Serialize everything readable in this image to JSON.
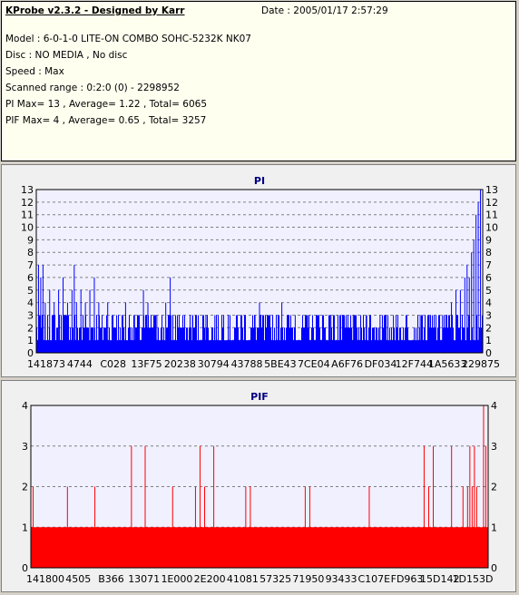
{
  "header": {
    "app_title": "KProbe v2.3.2 - Designed by Karr",
    "date": "Date : 2005/01/17 2:57:29",
    "lines": [
      "Model : 6-0-1-0 LITE-ON COMBO SOHC-5232K NK07",
      "Disc : NO MEDIA , No disc",
      "Speed : Max",
      "Scanned range : 0:2:0 (0) - 2298952",
      "PI Max= 13 , Average= 1.22 , Total= 6065",
      "PIF Max= 4 , Average= 0.65 , Total= 3257"
    ]
  },
  "colors": {
    "pi": "#0000ff",
    "pif": "#ff0000",
    "plot_bg": "#f0f0ff",
    "grid": "#808080"
  },
  "chart_data": [
    {
      "type": "bar",
      "title": "PI",
      "ylim": [
        0,
        13
      ],
      "yticks": [
        0,
        1,
        2,
        3,
        4,
        5,
        6,
        7,
        8,
        9,
        10,
        11,
        12,
        13
      ],
      "xtick_labels": [
        "141873",
        "4744",
        "C028",
        "13F75",
        "20238",
        "30794",
        "43788",
        "5BE43",
        "7CE04",
        "A6F76",
        "DF034",
        "12F744",
        "1A5633",
        "229875"
      ],
      "grid": "dashed horizontal",
      "series": [
        {
          "color": "#0000ff",
          "baseline": 1,
          "typical_range": [
            1,
            3
          ],
          "spikes": [
            [
              0.005,
              7
            ],
            [
              0.01,
              6
            ],
            [
              0.015,
              7
            ],
            [
              0.02,
              4
            ],
            [
              0.03,
              5
            ],
            [
              0.04,
              4
            ],
            [
              0.05,
              5
            ],
            [
              0.06,
              6
            ],
            [
              0.07,
              4
            ],
            [
              0.08,
              5
            ],
            [
              0.085,
              7
            ],
            [
              0.09,
              4
            ],
            [
              0.1,
              5
            ],
            [
              0.11,
              4
            ],
            [
              0.12,
              5
            ],
            [
              0.13,
              6
            ],
            [
              0.14,
              4
            ],
            [
              0.16,
              4
            ],
            [
              0.18,
              3
            ],
            [
              0.2,
              4
            ],
            [
              0.22,
              3
            ],
            [
              0.24,
              5
            ],
            [
              0.25,
              4
            ],
            [
              0.27,
              3
            ],
            [
              0.29,
              4
            ],
            [
              0.3,
              6
            ],
            [
              0.32,
              3
            ],
            [
              0.35,
              3
            ],
            [
              0.38,
              3
            ],
            [
              0.4,
              3
            ],
            [
              0.43,
              3
            ],
            [
              0.46,
              3
            ],
            [
              0.49,
              3
            ],
            [
              0.5,
              4
            ],
            [
              0.52,
              3
            ],
            [
              0.55,
              4
            ],
            [
              0.58,
              3
            ],
            [
              0.61,
              3
            ],
            [
              0.63,
              3
            ],
            [
              0.66,
              3
            ],
            [
              0.68,
              3
            ],
            [
              0.71,
              3
            ],
            [
              0.74,
              3
            ],
            [
              0.77,
              3
            ],
            [
              0.8,
              3
            ],
            [
              0.83,
              3
            ],
            [
              0.86,
              3
            ],
            [
              0.88,
              3
            ],
            [
              0.91,
              3
            ],
            [
              0.93,
              4
            ],
            [
              0.94,
              5
            ],
            [
              0.95,
              5
            ],
            [
              0.96,
              6
            ],
            [
              0.965,
              7
            ],
            [
              0.97,
              6
            ],
            [
              0.975,
              8
            ],
            [
              0.98,
              9
            ],
            [
              0.985,
              11
            ],
            [
              0.99,
              12
            ],
            [
              0.995,
              13
            ]
          ]
        }
      ]
    },
    {
      "type": "bar",
      "title": "PIF",
      "ylim": [
        0,
        4
      ],
      "yticks": [
        0,
        1,
        2,
        3,
        4
      ],
      "xtick_labels": [
        "141800",
        "4505",
        "B366",
        "13071",
        "1E000",
        "2E200",
        "41081",
        "57325",
        "71950",
        "93433",
        "C107E",
        "FD963",
        "15D142",
        "1D153D"
      ],
      "grid": "dashed horizontal",
      "series": [
        {
          "color": "#ff0000",
          "baseline": 1,
          "spikes": [
            [
              0.005,
              2
            ],
            [
              0.08,
              2
            ],
            [
              0.14,
              2
            ],
            [
              0.22,
              3
            ],
            [
              0.25,
              3
            ],
            [
              0.31,
              2
            ],
            [
              0.36,
              2
            ],
            [
              0.37,
              3
            ],
            [
              0.38,
              2
            ],
            [
              0.4,
              3
            ],
            [
              0.47,
              2
            ],
            [
              0.48,
              2
            ],
            [
              0.6,
              2
            ],
            [
              0.61,
              2
            ],
            [
              0.74,
              2
            ],
            [
              0.86,
              3
            ],
            [
              0.87,
              2
            ],
            [
              0.88,
              3
            ],
            [
              0.92,
              3
            ],
            [
              0.945,
              2
            ],
            [
              0.955,
              2
            ],
            [
              0.96,
              3
            ],
            [
              0.965,
              2
            ],
            [
              0.97,
              3
            ],
            [
              0.975,
              2
            ],
            [
              0.99,
              4
            ],
            [
              0.995,
              3
            ]
          ]
        }
      ]
    }
  ]
}
